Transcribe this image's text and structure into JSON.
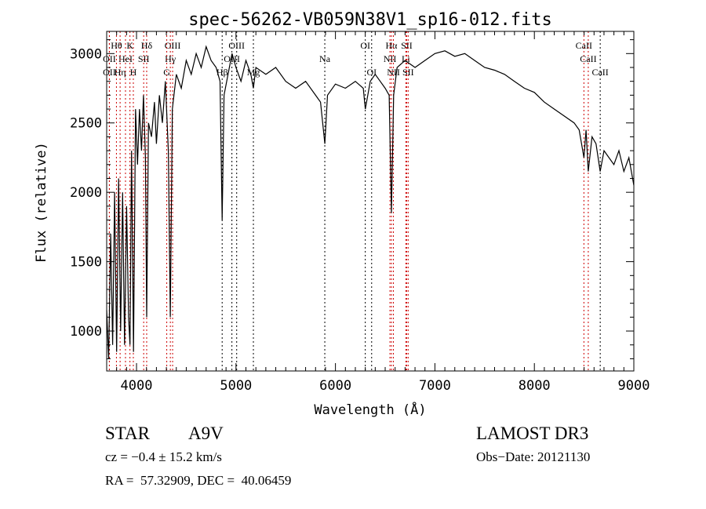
{
  "chart_data": {
    "type": "line",
    "title": "spec-56262-VB059N38V1_sp16-012.fits",
    "xlabel": "Wavelength (Å)",
    "ylabel": "Flux (relative)",
    "xlim": [
      3700,
      9000
    ],
    "ylim": [
      712,
      3160
    ],
    "xticks": [
      4000,
      5000,
      6000,
      7000,
      8000,
      9000
    ],
    "yticks": [
      1000,
      1500,
      2000,
      2500,
      3000
    ],
    "grid": false,
    "series": [
      {
        "name": "spectrum",
        "color": "#000000",
        "points": [
          [
            3700,
            1150
          ],
          [
            3720,
            800
          ],
          [
            3740,
            1700
          ],
          [
            3760,
            900
          ],
          [
            3780,
            2000
          ],
          [
            3800,
            850
          ],
          [
            3820,
            2100
          ],
          [
            3840,
            1000
          ],
          [
            3860,
            2000
          ],
          [
            3880,
            900
          ],
          [
            3900,
            1900
          ],
          [
            3920,
            1100
          ],
          [
            3934,
            900
          ],
          [
            3950,
            2300
          ],
          [
            3970,
            850
          ],
          [
            3990,
            2600
          ],
          [
            4010,
            2200
          ],
          [
            4030,
            2600
          ],
          [
            4050,
            2300
          ],
          [
            4070,
            2700
          ],
          [
            4090,
            2250
          ],
          [
            4102,
            1100
          ],
          [
            4120,
            2500
          ],
          [
            4150,
            2400
          ],
          [
            4180,
            2650
          ],
          [
            4200,
            2350
          ],
          [
            4230,
            2700
          ],
          [
            4260,
            2500
          ],
          [
            4290,
            2800
          ],
          [
            4320,
            2300
          ],
          [
            4340,
            1100
          ],
          [
            4360,
            2600
          ],
          [
            4400,
            2850
          ],
          [
            4450,
            2750
          ],
          [
            4500,
            2950
          ],
          [
            4550,
            2850
          ],
          [
            4600,
            3000
          ],
          [
            4650,
            2900
          ],
          [
            4700,
            3050
          ],
          [
            4750,
            2950
          ],
          [
            4800,
            2900
          ],
          [
            4840,
            2800
          ],
          [
            4861,
            1800
          ],
          [
            4880,
            2700
          ],
          [
            4920,
            2850
          ],
          [
            4960,
            3000
          ],
          [
            5000,
            2900
          ],
          [
            5050,
            2800
          ],
          [
            5100,
            2950
          ],
          [
            5150,
            2850
          ],
          [
            5175,
            2750
          ],
          [
            5200,
            2900
          ],
          [
            5300,
            2850
          ],
          [
            5400,
            2900
          ],
          [
            5500,
            2800
          ],
          [
            5600,
            2750
          ],
          [
            5700,
            2800
          ],
          [
            5800,
            2700
          ],
          [
            5850,
            2650
          ],
          [
            5893,
            2350
          ],
          [
            5920,
            2700
          ],
          [
            6000,
            2780
          ],
          [
            6100,
            2750
          ],
          [
            6200,
            2800
          ],
          [
            6280,
            2750
          ],
          [
            6300,
            2600
          ],
          [
            6350,
            2800
          ],
          [
            6400,
            2850
          ],
          [
            6450,
            2800
          ],
          [
            6500,
            2750
          ],
          [
            6540,
            2700
          ],
          [
            6563,
            1850
          ],
          [
            6585,
            2700
          ],
          [
            6620,
            2900
          ],
          [
            6700,
            2950
          ],
          [
            6800,
            2900
          ],
          [
            6900,
            2950
          ],
          [
            7000,
            3000
          ],
          [
            7100,
            3020
          ],
          [
            7200,
            2980
          ],
          [
            7300,
            3000
          ],
          [
            7400,
            2950
          ],
          [
            7500,
            2900
          ],
          [
            7600,
            2880
          ],
          [
            7700,
            2850
          ],
          [
            7800,
            2800
          ],
          [
            7900,
            2750
          ],
          [
            8000,
            2720
          ],
          [
            8100,
            2650
          ],
          [
            8200,
            2600
          ],
          [
            8300,
            2550
          ],
          [
            8400,
            2500
          ],
          [
            8450,
            2450
          ],
          [
            8498,
            2250
          ],
          [
            8520,
            2450
          ],
          [
            8542,
            2150
          ],
          [
            8580,
            2400
          ],
          [
            8620,
            2350
          ],
          [
            8662,
            2150
          ],
          [
            8700,
            2300
          ],
          [
            8750,
            2250
          ],
          [
            8800,
            2200
          ],
          [
            8850,
            2300
          ],
          [
            8900,
            2150
          ],
          [
            8950,
            2250
          ],
          [
            9000,
            2050
          ]
        ]
      }
    ],
    "line_markers": [
      {
        "label": "Hθ",
        "wave": 3798,
        "row": 1,
        "color": "#cc0000"
      },
      {
        "label": "K",
        "wave": 3934,
        "row": 1,
        "color": "#cc0000"
      },
      {
        "label": "Hδ",
        "wave": 4102,
        "row": 1,
        "color": "#cc0000"
      },
      {
        "label": "OIII",
        "wave": 4363,
        "row": 1,
        "color": "#cc0000"
      },
      {
        "label": "OIII",
        "wave": 5007,
        "row": 1,
        "color": "#000000"
      },
      {
        "label": "OI",
        "wave": 6300,
        "row": 1,
        "color": "#000000"
      },
      {
        "label": "Hα",
        "wave": 6563,
        "row": 1,
        "color": "#cc0000"
      },
      {
        "label": "SII",
        "wave": 6716,
        "row": 1,
        "color": "#cc0000"
      },
      {
        "label": "CaII",
        "wave": 8498,
        "row": 1,
        "color": "#cc0000"
      },
      {
        "label": "OII",
        "wave": 3727,
        "row": 2,
        "color": "#cc0000"
      },
      {
        "label": "HeI",
        "wave": 3889,
        "row": 2,
        "color": "#cc0000"
      },
      {
        "label": "SII",
        "wave": 4072,
        "row": 2,
        "color": "#cc0000"
      },
      {
        "label": "Hγ",
        "wave": 4340,
        "row": 2,
        "color": "#cc0000"
      },
      {
        "label": "OIII",
        "wave": 4959,
        "row": 2,
        "color": "#000000"
      },
      {
        "label": "Na",
        "wave": 5893,
        "row": 2,
        "color": "#000000"
      },
      {
        "label": "NII",
        "wave": 6548,
        "row": 2,
        "color": "#cc0000"
      },
      {
        "label": "Li",
        "wave": 6708,
        "row": 2,
        "color": "#cc0000"
      },
      {
        "label": "CaII",
        "wave": 8542,
        "row": 2,
        "color": "#cc0000"
      },
      {
        "label": "OII",
        "wave": 3727,
        "row": 3,
        "color": "#cc0000"
      },
      {
        "label": "Hη",
        "wave": 3835,
        "row": 3,
        "color": "#cc0000"
      },
      {
        "label": "H",
        "wave": 3968,
        "row": 3,
        "color": "#cc0000"
      },
      {
        "label": "G",
        "wave": 4304,
        "row": 3,
        "color": "#cc0000"
      },
      {
        "label": "Hβ",
        "wave": 4861,
        "row": 3,
        "color": "#000000"
      },
      {
        "label": "Mg",
        "wave": 5175,
        "row": 3,
        "color": "#000000"
      },
      {
        "label": "OI",
        "wave": 6364,
        "row": 3,
        "color": "#000000"
      },
      {
        "label": "NII",
        "wave": 6583,
        "row": 3,
        "color": "#cc0000"
      },
      {
        "label": "SII",
        "wave": 6731,
        "row": 3,
        "color": "#cc0000"
      },
      {
        "label": "CaII",
        "wave": 8662,
        "row": 3,
        "color": "#000000"
      }
    ]
  },
  "info": {
    "object_type": "STAR",
    "subclass": "A9V",
    "cz": "cz = −0.4 ± 15.2 km/s",
    "radec": "RA =  57.32909, DEC =  40.06459",
    "survey": "LAMOST DR3",
    "obs_date": "Obs−Date: 20121130"
  }
}
